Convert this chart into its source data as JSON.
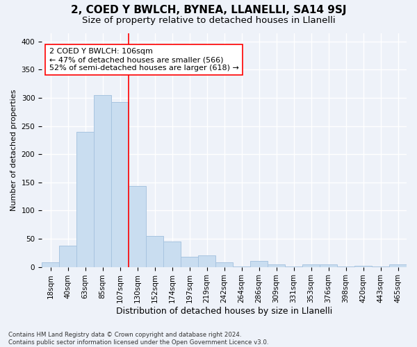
{
  "title1": "2, COED Y BWLCH, BYNEA, LLANELLI, SA14 9SJ",
  "title2": "Size of property relative to detached houses in Llanelli",
  "xlabel": "Distribution of detached houses by size in Llanelli",
  "ylabel": "Number of detached properties",
  "footer": "Contains HM Land Registry data © Crown copyright and database right 2024.\nContains public sector information licensed under the Open Government Licence v3.0.",
  "categories": [
    "18sqm",
    "40sqm",
    "63sqm",
    "85sqm",
    "107sqm",
    "130sqm",
    "152sqm",
    "174sqm",
    "197sqm",
    "219sqm",
    "242sqm",
    "264sqm",
    "286sqm",
    "309sqm",
    "331sqm",
    "353sqm",
    "376sqm",
    "398sqm",
    "420sqm",
    "443sqm",
    "465sqm"
  ],
  "values": [
    8,
    38,
    240,
    305,
    292,
    143,
    55,
    45,
    18,
    20,
    8,
    1,
    10,
    5,
    1,
    4,
    4,
    1,
    2,
    1,
    4
  ],
  "bar_color": "#c9ddf0",
  "bar_edge_color": "#a8c4e0",
  "vline_x": 4.5,
  "vline_color": "red",
  "annotation_text": "2 COED Y BWLCH: 106sqm\n← 47% of detached houses are smaller (566)\n52% of semi-detached houses are larger (618) →",
  "annotation_box_color": "white",
  "annotation_box_edge": "red",
  "ylim": [
    0,
    415
  ],
  "yticks": [
    0,
    50,
    100,
    150,
    200,
    250,
    300,
    350,
    400
  ],
  "background_color": "#eef2f9",
  "grid_color": "white",
  "title1_fontsize": 11,
  "title2_fontsize": 9.5,
  "ylabel_fontsize": 8,
  "xlabel_fontsize": 9,
  "tick_fontsize": 7.5,
  "footer_fontsize": 6.2,
  "annotation_fontsize": 8
}
